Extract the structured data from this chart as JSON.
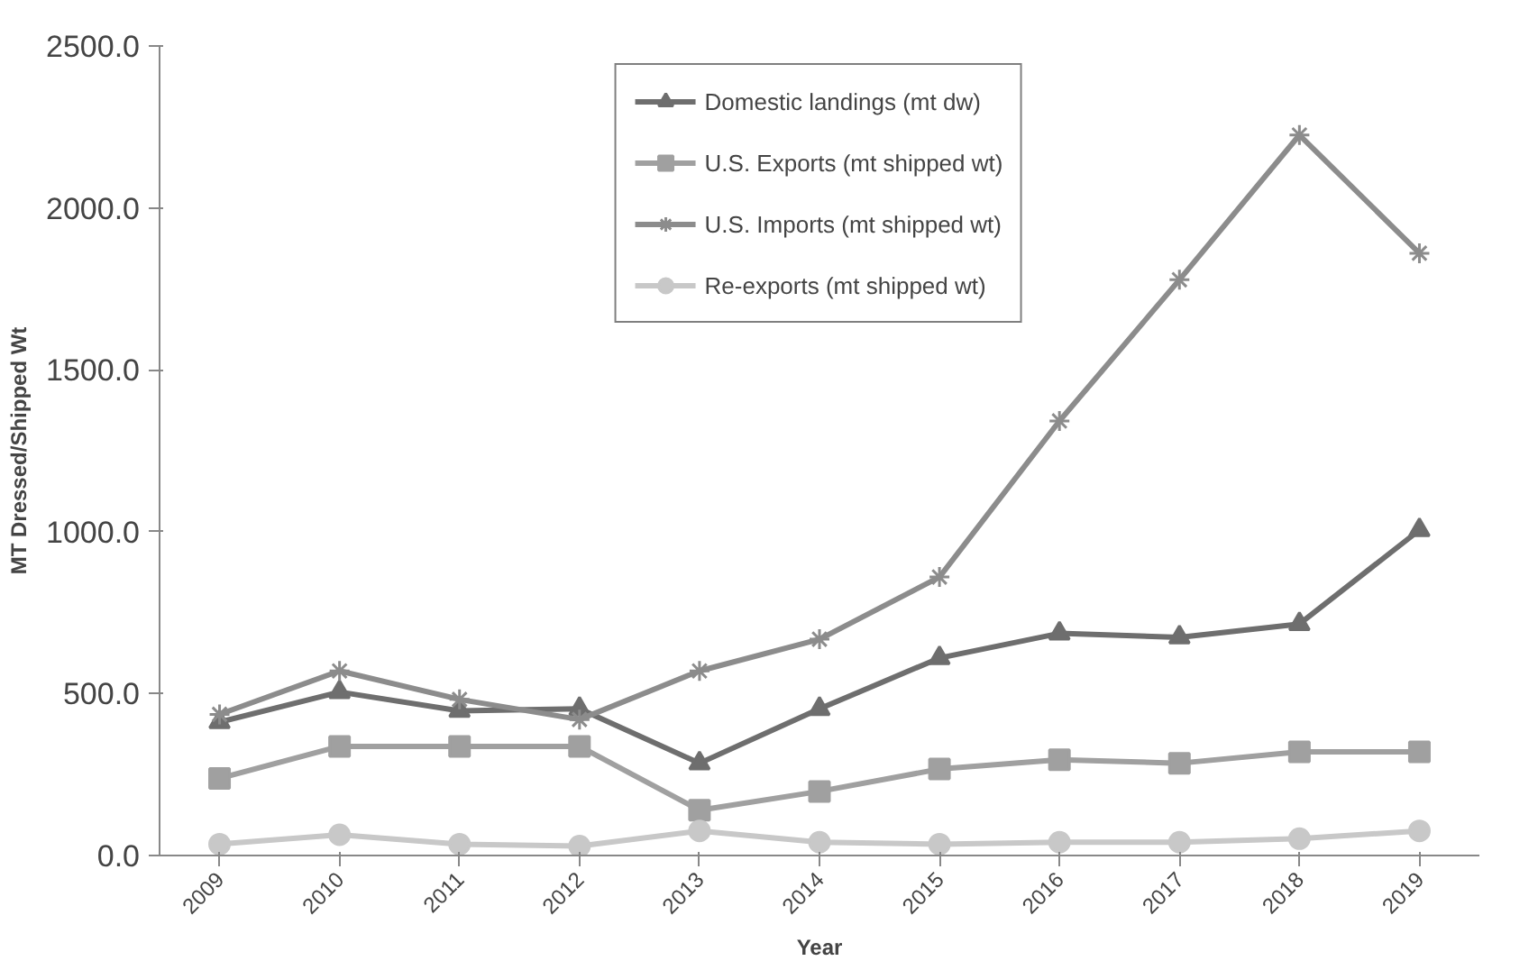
{
  "chart_data": {
    "type": "line",
    "xlabel": "Year",
    "ylabel": "MT Dressed/Shipped Wt",
    "categories": [
      "2009",
      "2010",
      "2011",
      "2012",
      "2013",
      "2014",
      "2015",
      "2016",
      "2017",
      "2018",
      "2019"
    ],
    "series": [
      {
        "name": "Domestic landings (mt dw)",
        "color": "#6e6e6e",
        "marker": "triangle",
        "values": [
          412,
          505,
          447,
          453,
          285,
          453,
          610,
          686,
          674,
          715,
          1005
        ]
      },
      {
        "name": "U.S. Exports (mt shipped wt)",
        "color": "#a0a0a0",
        "marker": "square",
        "values": [
          238,
          337,
          337,
          337,
          140,
          198,
          267,
          296,
          285,
          320,
          320
        ]
      },
      {
        "name": "U.S. Imports (mt shipped wt)",
        "color": "#8c8c8c",
        "marker": "cross",
        "values": [
          436,
          570,
          482,
          420,
          570,
          668,
          860,
          1342,
          1778,
          2225,
          1860
        ]
      },
      {
        "name": "Re-exports (mt shipped wt)",
        "color": "#c8c8c8",
        "marker": "circle",
        "values": [
          35,
          64,
          35,
          29,
          76,
          41,
          35,
          41,
          41,
          52,
          76
        ]
      }
    ],
    "ylim": [
      0,
      2500
    ],
    "yticks": [
      {
        "value": 0,
        "label": "0.0"
      },
      {
        "value": 500,
        "label": "500.0"
      },
      {
        "value": 1000,
        "label": "1000.0"
      },
      {
        "value": 1500,
        "label": "1500.0"
      },
      {
        "value": 2000,
        "label": "2000.0"
      },
      {
        "value": 2500,
        "label": "2500.0"
      }
    ],
    "grid": false,
    "legend": "top",
    "line_style": "solid"
  }
}
